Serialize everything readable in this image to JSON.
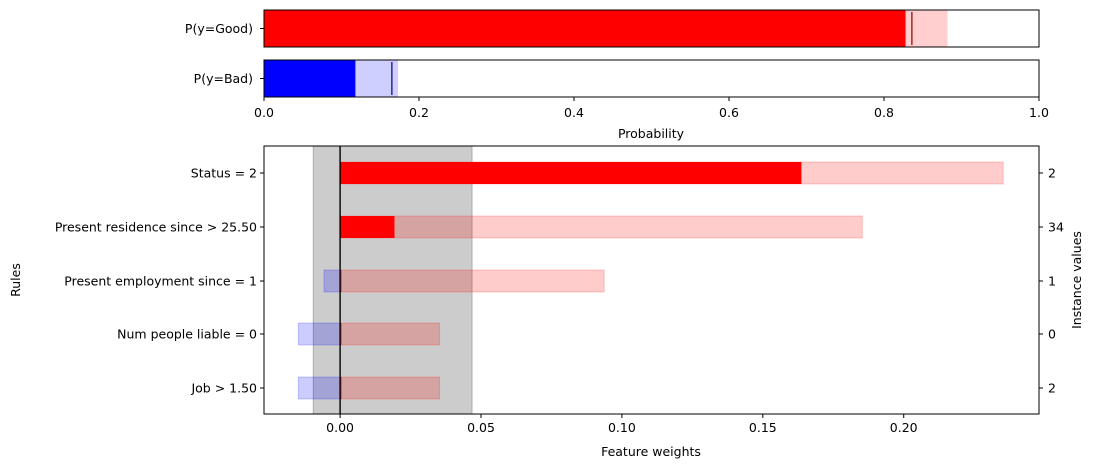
{
  "chart_data": [
    {
      "type": "bar",
      "orientation": "horizontal",
      "xlabel": "Probability",
      "xlim": [
        0,
        1
      ],
      "xticks": [
        "0.0",
        "0.2",
        "0.4",
        "0.6",
        "0.8",
        "1.0"
      ],
      "categories": [
        "P(y=Good)",
        "P(y=Bad)"
      ],
      "bars": [
        {
          "label": "P(y=Good)",
          "value": 0.828,
          "low": 0.828,
          "high": 0.882,
          "marker": 0.836,
          "color": "#ff0000",
          "interval_color": "#ffcccc"
        },
        {
          "label": "P(y=Bad)",
          "value": 0.118,
          "low": 0.118,
          "high": 0.173,
          "marker": 0.165,
          "color": "#0000ff",
          "interval_color": "#ccccff"
        }
      ]
    },
    {
      "type": "bar",
      "orientation": "horizontal",
      "xlabel": "Feature weights",
      "ylabel": "Rules",
      "y2label": "Instance values",
      "xlim": [
        -0.027,
        0.248
      ],
      "xticks": [
        "0.00",
        "0.05",
        "0.10",
        "0.15",
        "0.20"
      ],
      "xtick_values": [
        0,
        0.05,
        0.1,
        0.15,
        0.2
      ],
      "uncertainty_band": [
        -0.0095,
        0.0468
      ],
      "rules": [
        {
          "label": "Status = 2",
          "value": "2",
          "weight": 0.1637,
          "low": 0.0,
          "high": 0.2353
        },
        {
          "label": "Present residence since > 25.50",
          "value": "34",
          "weight": 0.0193,
          "low": 0.0,
          "high": 0.1853
        },
        {
          "label": "Present employment since = 1",
          "value": "1",
          "weight": 0.0,
          "low": -0.0057,
          "high": 0.0937
        },
        {
          "label": "Num people liable = 0",
          "value": "0",
          "weight": 0.0,
          "low": -0.0148,
          "high": 0.0353
        },
        {
          "label": "Job > 1.50",
          "value": "2",
          "weight": 0.0,
          "low": -0.0148,
          "high": 0.0353
        }
      ],
      "colors": {
        "positive": "#ff0000",
        "positive_interval": "#ffcccc",
        "negative": "#0000ff",
        "negative_interval": "#ccccff",
        "band": "#cccccc"
      }
    }
  ]
}
